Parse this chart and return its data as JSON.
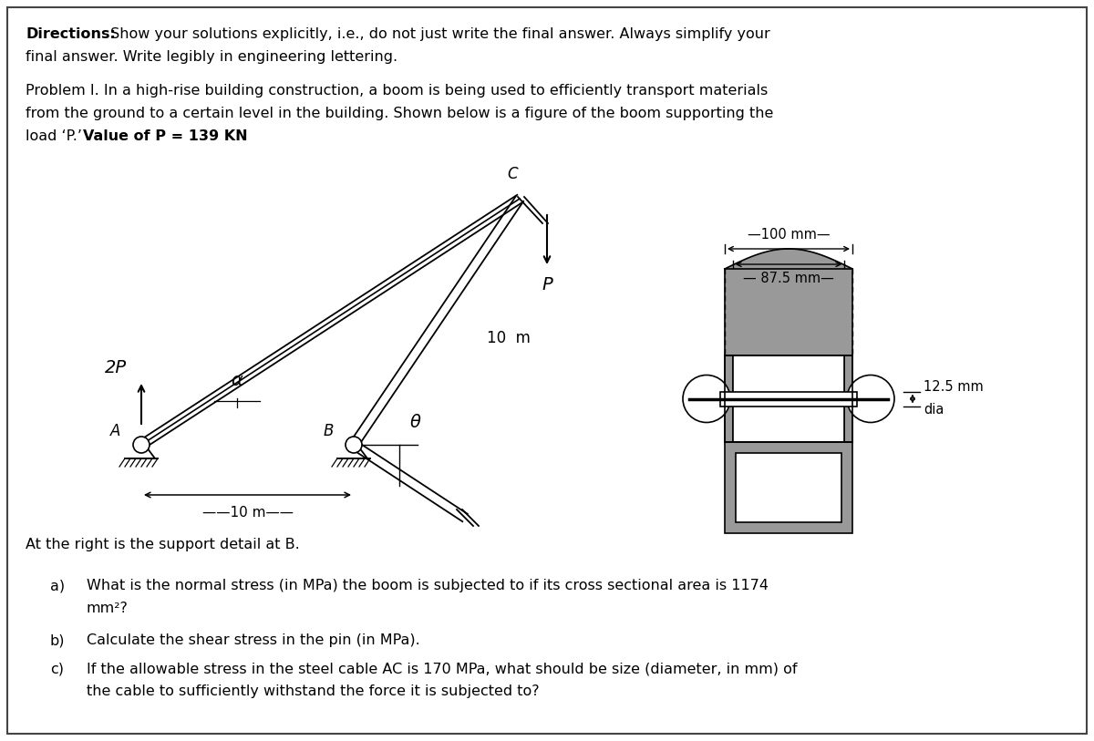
{
  "bg_color": "#ffffff",
  "line_color": "#000000",
  "gray_fill": "#999999",
  "gray_light": "#bbbbbb",
  "text_color": "#000000",
  "directions_bold": "Directions:",
  "directions_rest": " Show your solutions explicitly, i.e., do not just write the final answer. Always simplify your",
  "directions_line2": "final answer. Write legibly in engineering lettering.",
  "prob_line1": "Problem I. In a high-rise building construction, a boom is being used to efficiently transport materials",
  "prob_line2": "from the ground to a certain level in the building. Shown below is a figure of the boom supporting the",
  "prob_line3a": "load ‘P.’ ",
  "prob_line3b": "Value of P = 139 KN",
  "at_right": "At the right is the support detail at B.",
  "qa_label": "a)",
  "qa_line1": "What is the normal stress (in MPa) the boom is subjected to if its cross sectional area is 1174",
  "qa_line2": "mm²?",
  "qb_label": "b)",
  "qb_line1": "Calculate the shear stress in the pin (in MPa).",
  "qc_label": "c)",
  "qc_line1": "If the allowable stress in the steel cable AC is 170 MPa, what should be size (diameter, in mm) of",
  "qc_line2": "the cable to sufficiently withstand the force it is subjected to?",
  "lbl_2P": "2P",
  "lbl_alpha": "α",
  "lbl_theta": "θ",
  "lbl_P": "P",
  "lbl_A": "A",
  "lbl_B": "B",
  "lbl_C": "C",
  "lbl_10m_h": "——10 m——",
  "lbl_10m": "10  m",
  "lbl_100mm": "—100 mm—",
  "lbl_875mm": "— 87.5 mm—",
  "lbl_dia": "12.5 mm",
  "lbl_dia2": "dia",
  "fontsize_main": 11.5,
  "fontsize_label": 12,
  "fontsize_dim": 10.5
}
